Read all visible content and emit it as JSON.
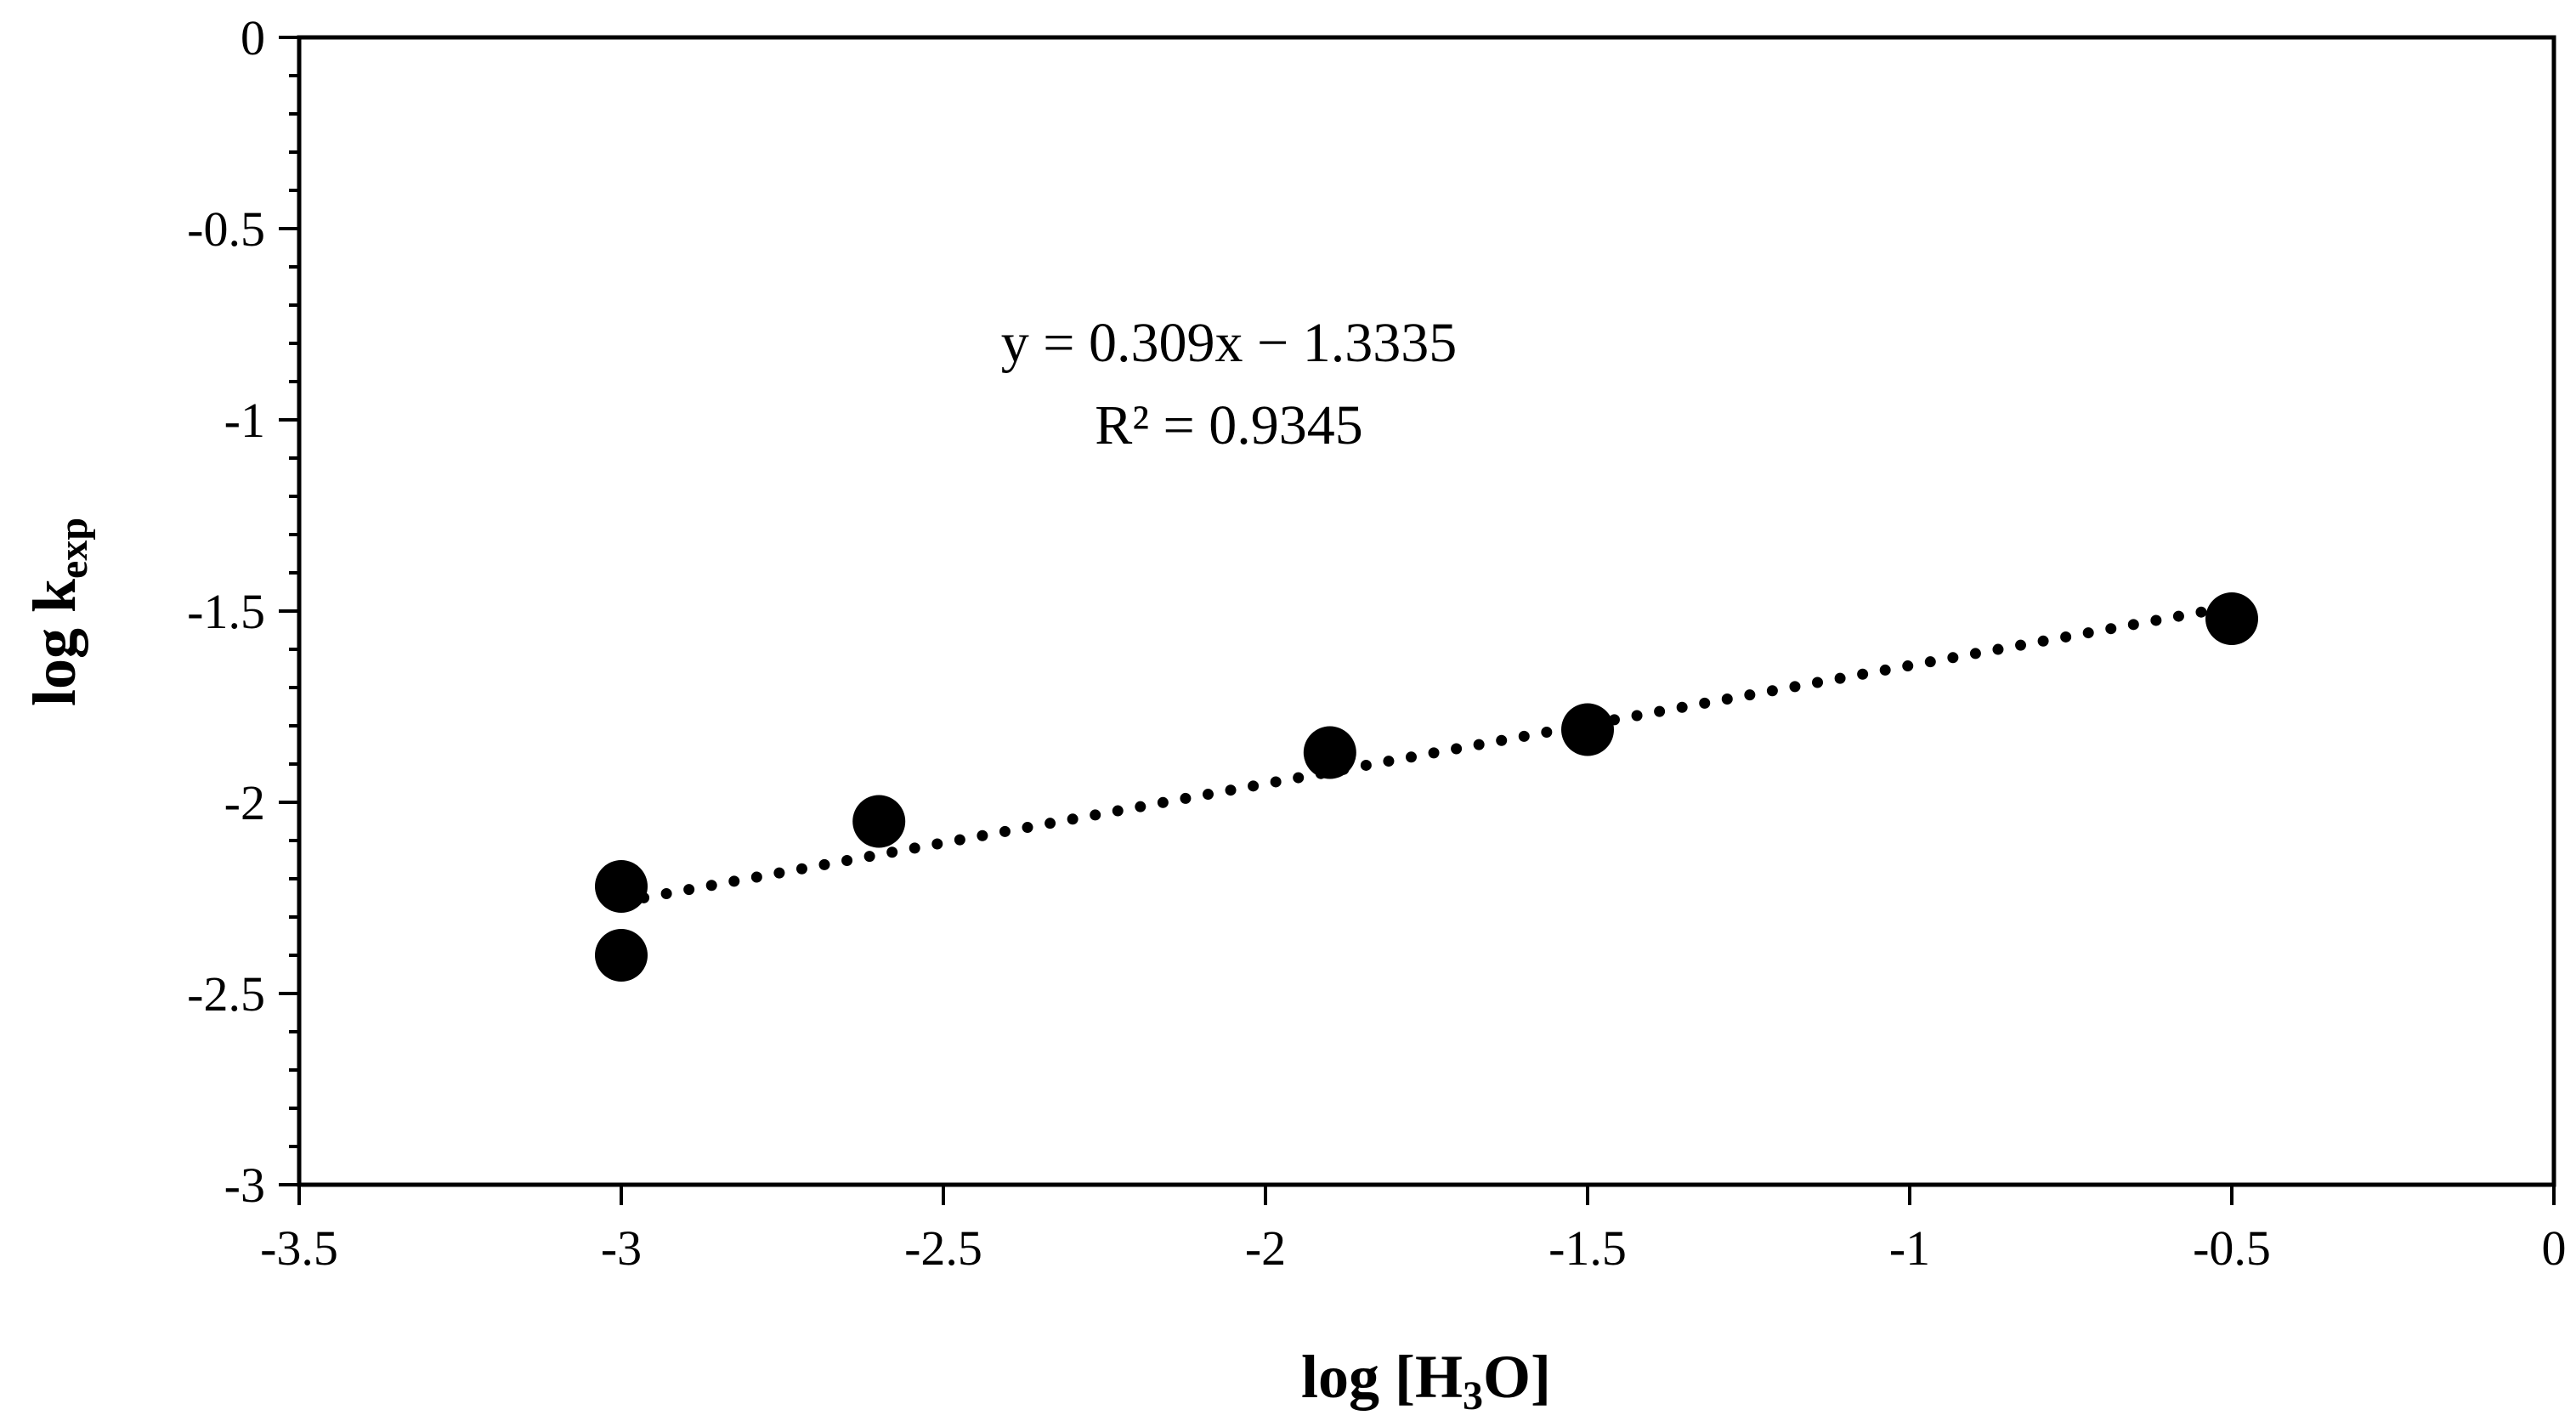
{
  "chart_data": {
    "type": "scatter",
    "xlabel": "log [H3O]",
    "ylabel": "log kexp",
    "xlim": [
      -3.5,
      0
    ],
    "ylim": [
      -3,
      0
    ],
    "x_ticks": [
      -3.5,
      -3,
      -2.5,
      -2,
      -1.5,
      -1,
      -0.5,
      0
    ],
    "x_tick_labels": [
      "-3.5",
      "-3",
      "-2.5",
      "-2",
      "-1.5",
      "-1",
      "-0.5",
      "0"
    ],
    "y_ticks": [
      0,
      -0.5,
      -1,
      -1.5,
      -2,
      -2.5,
      -3
    ],
    "y_tick_labels": [
      "0",
      "-0.5",
      "-1",
      "-1.5",
      "-2",
      "-2.5",
      "-3"
    ],
    "y_minor_step": 0.1,
    "grid": false,
    "series": [
      {
        "marker_color": "#000000",
        "points": [
          {
            "x": -3.0,
            "y": -2.22
          },
          {
            "x": -3.0,
            "y": -2.4
          },
          {
            "x": -2.6,
            "y": -2.05
          },
          {
            "x": -1.9,
            "y": -1.87
          },
          {
            "x": -1.5,
            "y": -1.81
          },
          {
            "x": -0.5,
            "y": -1.52
          }
        ]
      }
    ],
    "trendline": {
      "style": "dotted",
      "slope": 0.309,
      "intercept": -1.3335,
      "x_range": [
        -3.0,
        -0.5
      ]
    },
    "annotations": [
      {
        "text": "y = 0.309x − 1.3335"
      },
      {
        "text": "R² = 0.9345"
      }
    ]
  }
}
